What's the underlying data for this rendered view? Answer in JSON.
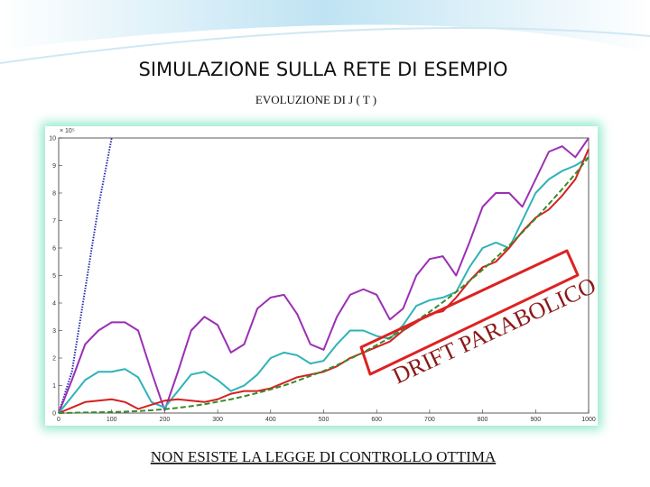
{
  "chart_data": {
    "type": "line",
    "title": "SIMULAZIONE  SULLA  RETE  DI  ESEMPIO",
    "subtitle": "EVOLUZIONE  DI  J ( T )",
    "y_multiplier": "× 10⁵",
    "annotations": [
      "DRIFT  PARABOLICO",
      "NON  ESISTE  LA  LEGGE  DI  CONTROLLO  OTTIMA"
    ],
    "x": [
      0,
      25,
      50,
      75,
      100,
      125,
      150,
      175,
      200,
      225,
      250,
      275,
      300,
      325,
      350,
      375,
      400,
      425,
      450,
      475,
      500,
      525,
      550,
      575,
      600,
      625,
      650,
      675,
      700,
      725,
      750,
      775,
      800,
      825,
      850,
      875,
      900,
      925,
      950,
      975,
      1000
    ],
    "series": [
      {
        "color": "#2a2ab0",
        "dash": "dotted",
        "values": [
          0,
          1.5,
          4.5,
          7.5,
          10,
          null,
          null,
          null,
          null,
          null,
          null,
          null,
          null,
          null,
          null,
          null,
          null,
          null,
          null,
          null,
          null,
          null,
          null,
          null,
          null,
          null,
          null,
          null,
          null,
          null,
          null,
          null,
          null,
          null,
          null,
          null,
          null,
          null,
          null,
          null,
          null
        ]
      },
      {
        "color": "#9b2fb5",
        "dash": "solid",
        "values": [
          0,
          1.2,
          2.5,
          3.0,
          3.3,
          3.3,
          3.0,
          1.5,
          0.1,
          1.5,
          3.0,
          3.5,
          3.2,
          2.2,
          2.5,
          3.8,
          4.2,
          4.3,
          3.6,
          2.5,
          2.3,
          3.5,
          4.3,
          4.5,
          4.3,
          3.4,
          3.8,
          5.0,
          5.6,
          5.7,
          5.0,
          6.2,
          7.5,
          8.0,
          8.0,
          7.5,
          8.5,
          9.5,
          9.7,
          9.3,
          10
        ]
      },
      {
        "color": "#2fb3b8",
        "dash": "solid",
        "values": [
          0,
          0.6,
          1.2,
          1.5,
          1.5,
          1.6,
          1.3,
          0.4,
          0.2,
          0.8,
          1.4,
          1.5,
          1.2,
          0.8,
          1.0,
          1.4,
          2.0,
          2.2,
          2.1,
          1.8,
          1.9,
          2.5,
          3.0,
          3.0,
          2.8,
          2.7,
          3.2,
          3.9,
          4.1,
          4.2,
          4.4,
          5.3,
          6.0,
          6.2,
          6.0,
          7.0,
          8.0,
          8.5,
          8.8,
          9.0,
          9.3
        ]
      },
      {
        "color": "#d42020",
        "dash": "solid",
        "values": [
          0,
          0.2,
          0.4,
          0.45,
          0.5,
          0.4,
          0.15,
          0.3,
          0.45,
          0.5,
          0.45,
          0.4,
          0.5,
          0.7,
          0.8,
          0.8,
          0.9,
          1.1,
          1.3,
          1.4,
          1.5,
          1.7,
          2.0,
          2.2,
          2.4,
          2.6,
          3.0,
          3.3,
          3.6,
          3.7,
          4.2,
          4.8,
          5.3,
          5.5,
          6.0,
          6.6,
          7.1,
          7.4,
          7.9,
          8.5,
          9.6
        ]
      },
      {
        "color": "#3a8a2a",
        "dash": "dashed",
        "values": [
          0,
          0.01,
          0.02,
          0.03,
          0.04,
          0.05,
          0.07,
          0.1,
          0.14,
          0.19,
          0.25,
          0.32,
          0.41,
          0.5,
          0.61,
          0.73,
          0.86,
          1.0,
          1.17,
          1.35,
          1.53,
          1.74,
          1.97,
          2.21,
          2.47,
          2.74,
          3.04,
          3.35,
          3.68,
          4.03,
          4.4,
          4.8,
          5.21,
          5.64,
          6.09,
          6.57,
          7.07,
          7.6,
          8.14,
          8.7,
          9.3
        ]
      }
    ],
    "xlim": [
      0,
      1000
    ],
    "xticks": [
      0,
      100,
      200,
      300,
      400,
      500,
      600,
      700,
      800,
      900,
      1000
    ],
    "ylim": [
      0,
      10
    ],
    "yticks": [
      0,
      1,
      2,
      3,
      4,
      5,
      6,
      7,
      8,
      9,
      10
    ]
  }
}
